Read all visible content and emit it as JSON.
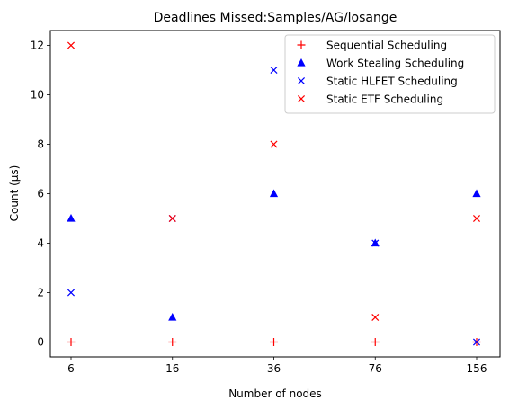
{
  "chart_data": {
    "type": "scatter",
    "title": "Deadlines Missed:Samples/AG/losange",
    "xlabel": "Number of nodes",
    "ylabel": "Count (µs)",
    "categories": [
      "6",
      "16",
      "36",
      "76",
      "156"
    ],
    "ylim": [
      -0.6,
      12.6
    ],
    "yticks": [
      0,
      2,
      4,
      6,
      8,
      10,
      12
    ],
    "grid": false,
    "legend_position": "top-right",
    "series": [
      {
        "name": "Sequential Scheduling",
        "marker": "plus",
        "color": "#ff0000",
        "values": [
          0,
          0,
          0,
          0,
          0
        ]
      },
      {
        "name": "Work Stealing Scheduling",
        "marker": "triangle",
        "color": "#0000ff",
        "values": [
          5,
          1,
          6,
          4,
          6
        ]
      },
      {
        "name": "Static HLFET Scheduling",
        "marker": "x",
        "color": "#0000ff",
        "values": [
          2,
          5,
          11,
          4,
          0
        ]
      },
      {
        "name": "Static ETF Scheduling",
        "marker": "x",
        "color": "#ff0000",
        "values": [
          12,
          5,
          8,
          1,
          5
        ]
      }
    ]
  }
}
